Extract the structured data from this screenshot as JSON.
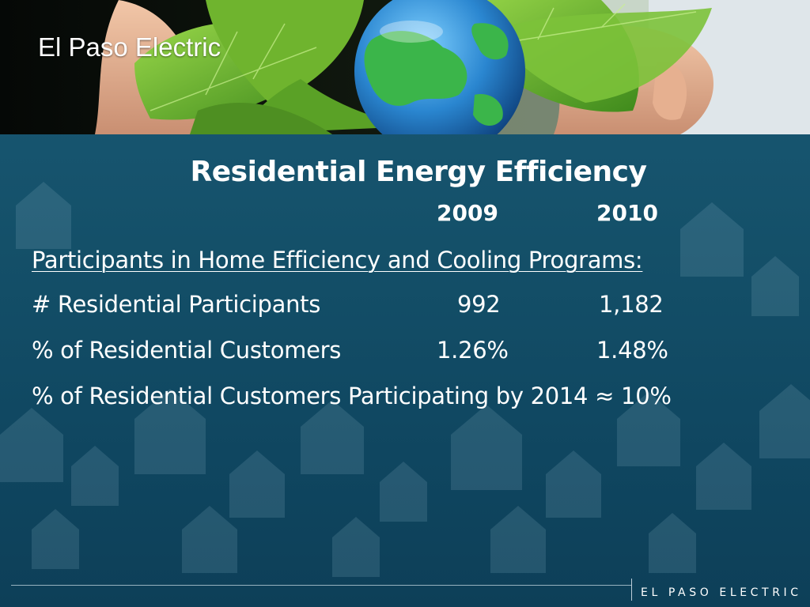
{
  "header": {
    "company": "El Paso Electric"
  },
  "slide": {
    "title": "Residential Energy Efficiency",
    "columns": [
      "2009",
      "2010"
    ],
    "section_heading": "Participants in Home Efficiency and Cooling Programs:",
    "rows": [
      {
        "label": "# Residential Participants",
        "values": [
          "992",
          "1,182"
        ]
      },
      {
        "label": "% of Residential Customers",
        "values": [
          "1.26%",
          "1.48%"
        ]
      }
    ],
    "summary": "% of Residential Customers Participating by 2014 ≈ 10%"
  },
  "footer": {
    "logo_text": "EL PASO ELECTRIC"
  },
  "colors": {
    "background": "#145069",
    "text": "#ffffff",
    "leaf_green": "#6dbb2e",
    "globe_blue": "#2f8fd6"
  }
}
